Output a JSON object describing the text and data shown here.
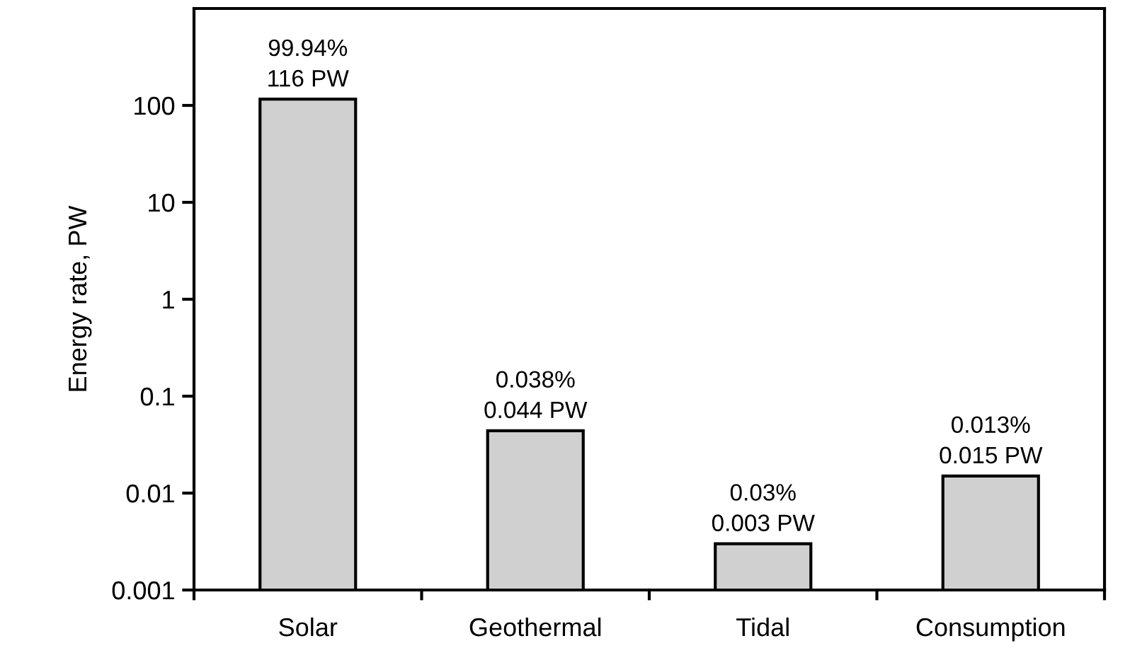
{
  "chart_data": {
    "type": "bar",
    "ylabel": "Energy rate, PW",
    "categories": [
      "Solar",
      "Geothermal",
      "Tidal",
      "Consumption"
    ],
    "values": [
      116,
      0.044,
      0.003,
      0.015
    ],
    "value_labels": [
      "99.94%\n116 PW",
      "0.038%\n0.044 PW",
      "0.03%\n0.003 PW",
      "0.013%\n0.015 PW"
    ],
    "color": "#d0d0d0",
    "log": true,
    "ylim": [
      0.001,
      1000
    ],
    "yticks": [
      0.001,
      0.01,
      0.1,
      1,
      10,
      100
    ],
    "grid": false,
    "legend": false
  }
}
